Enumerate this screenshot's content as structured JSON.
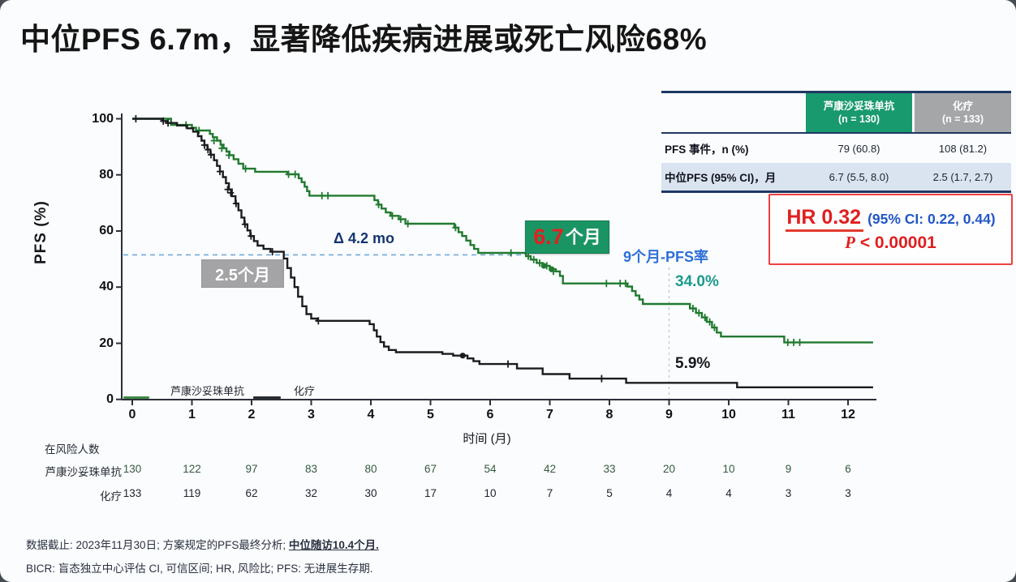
{
  "slide": {
    "title": "中位PFS 6.7m，显著降低疾病进展或死亡风险68%"
  },
  "chart_data": {
    "type": "line",
    "subtype": "kaplan-meier",
    "xlabel": "时间 (月)",
    "ylabel": "PFS (%)",
    "xlim": [
      0,
      12.42
    ],
    "ylim": [
      0,
      100
    ],
    "xticks": [
      0,
      1,
      2,
      3,
      4,
      5,
      6,
      7,
      8,
      9,
      10,
      11,
      12
    ],
    "yticks": [
      0,
      20,
      40,
      60,
      80,
      100
    ],
    "grid": false,
    "legend_position": "lower-left-inside",
    "series": [
      {
        "name": "芦康沙妥珠单抗",
        "color": "#217a2f",
        "median_months": 6.7,
        "pfs_rate_9mo": "34.0%",
        "steps": [
          [
            0,
            100
          ],
          [
            0.65,
            97.8
          ],
          [
            1.0,
            96.8
          ],
          [
            1.07,
            95.8
          ],
          [
            1.3,
            94.6
          ],
          [
            1.35,
            93.4
          ],
          [
            1.42,
            92.2
          ],
          [
            1.48,
            90.8
          ],
          [
            1.53,
            89.5
          ],
          [
            1.58,
            88.3
          ],
          [
            1.63,
            87.0
          ],
          [
            1.7,
            85.6
          ],
          [
            1.78,
            84.0
          ],
          [
            1.86,
            82.2
          ],
          [
            2.06,
            81.1
          ],
          [
            2.6,
            80.2
          ],
          [
            2.79,
            78.8
          ],
          [
            2.84,
            77.4
          ],
          [
            2.89,
            75.8
          ],
          [
            2.93,
            74.2
          ],
          [
            2.97,
            72.6
          ],
          [
            4.06,
            71.0
          ],
          [
            4.12,
            69.4
          ],
          [
            4.18,
            68.0
          ],
          [
            4.25,
            66.6
          ],
          [
            4.33,
            65.4
          ],
          [
            4.47,
            64.2
          ],
          [
            4.58,
            62.6
          ],
          [
            5.4,
            61.2
          ],
          [
            5.47,
            59.6
          ],
          [
            5.53,
            58.2
          ],
          [
            5.6,
            56.6
          ],
          [
            5.67,
            55.0
          ],
          [
            5.73,
            53.6
          ],
          [
            5.8,
            52.2
          ],
          [
            6.6,
            51.0
          ],
          [
            6.68,
            49.8
          ],
          [
            6.78,
            48.6
          ],
          [
            6.88,
            47.6
          ],
          [
            7.0,
            46.4
          ],
          [
            7.1,
            45.6
          ],
          [
            7.17,
            44.0
          ],
          [
            7.22,
            41.3
          ],
          [
            8.3,
            40.2
          ],
          [
            8.38,
            38.6
          ],
          [
            8.44,
            37.0
          ],
          [
            8.5,
            35.6
          ],
          [
            8.56,
            34.0
          ],
          [
            9.35,
            32.4
          ],
          [
            9.45,
            30.8
          ],
          [
            9.55,
            29.2
          ],
          [
            9.63,
            27.6
          ],
          [
            9.72,
            25.6
          ],
          [
            9.8,
            23.8
          ],
          [
            9.87,
            22.4
          ],
          [
            10.93,
            20.3
          ]
        ],
        "censors": [
          [
            0.9,
            97.8
          ],
          [
            1.12,
            95.8
          ],
          [
            1.37,
            92.2
          ],
          [
            1.5,
            89.5
          ],
          [
            1.62,
            87.0
          ],
          [
            1.9,
            82.2
          ],
          [
            2.62,
            80.2
          ],
          [
            2.73,
            80.2
          ],
          [
            3.18,
            72.6
          ],
          [
            3.28,
            72.6
          ],
          [
            4.13,
            69.4
          ],
          [
            4.36,
            65.4
          ],
          [
            4.5,
            64.2
          ],
          [
            4.62,
            62.6
          ],
          [
            5.42,
            61.2
          ],
          [
            6.35,
            52.2
          ],
          [
            6.64,
            51.0
          ],
          [
            6.73,
            49.8
          ],
          [
            6.83,
            48.6
          ],
          [
            6.95,
            47.6
          ],
          [
            7.06,
            45.6
          ],
          [
            7.95,
            41.3
          ],
          [
            8.18,
            41.3
          ],
          [
            8.27,
            41.3
          ],
          [
            9.4,
            32.4
          ],
          [
            9.5,
            30.8
          ],
          [
            9.6,
            29.2
          ],
          [
            9.68,
            27.6
          ],
          [
            9.76,
            25.6
          ],
          [
            10.99,
            20.3
          ],
          [
            11.09,
            20.3
          ],
          [
            11.19,
            20.3
          ]
        ],
        "dots": [
          [
            6.9,
            47.6
          ],
          [
            7.03,
            46.4
          ]
        ]
      },
      {
        "name": "化疗",
        "color": "#1b1c20",
        "median_months": 2.5,
        "pfs_rate_9mo": "5.9%",
        "steps": [
          [
            0,
            100
          ],
          [
            0.5,
            99.2
          ],
          [
            0.58,
            98.5
          ],
          [
            0.75,
            97.6
          ],
          [
            0.92,
            96.6
          ],
          [
            1.02,
            95.4
          ],
          [
            1.1,
            93.8
          ],
          [
            1.16,
            92.2
          ],
          [
            1.21,
            90.6
          ],
          [
            1.26,
            89.0
          ],
          [
            1.31,
            87.2
          ],
          [
            1.37,
            85.2
          ],
          [
            1.42,
            83.2
          ],
          [
            1.47,
            81.2
          ],
          [
            1.52,
            79.2
          ],
          [
            1.57,
            77.0
          ],
          [
            1.62,
            74.8
          ],
          [
            1.67,
            72.4
          ],
          [
            1.73,
            69.8
          ],
          [
            1.78,
            67.4
          ],
          [
            1.83,
            64.8
          ],
          [
            1.88,
            62.4
          ],
          [
            1.93,
            60.2
          ],
          [
            1.98,
            58.2
          ],
          [
            2.04,
            56.4
          ],
          [
            2.1,
            54.8
          ],
          [
            2.2,
            53.6
          ],
          [
            2.32,
            52.6
          ],
          [
            2.54,
            50.2
          ],
          [
            2.6,
            46.8
          ],
          [
            2.66,
            43.4
          ],
          [
            2.72,
            40.0
          ],
          [
            2.78,
            36.6
          ],
          [
            2.85,
            33.2
          ],
          [
            2.92,
            30.4
          ],
          [
            3.0,
            28.8
          ],
          [
            3.1,
            28.0
          ],
          [
            3.98,
            26.8
          ],
          [
            4.05,
            24.6
          ],
          [
            4.1,
            22.4
          ],
          [
            4.16,
            20.4
          ],
          [
            4.22,
            18.8
          ],
          [
            4.3,
            17.6
          ],
          [
            4.42,
            16.8
          ],
          [
            5.2,
            16.2
          ],
          [
            5.38,
            15.6
          ],
          [
            5.62,
            14.6
          ],
          [
            5.72,
            13.6
          ],
          [
            5.82,
            12.6
          ],
          [
            6.45,
            11.0
          ],
          [
            6.88,
            9.0
          ],
          [
            7.33,
            7.4
          ],
          [
            8.28,
            5.9
          ],
          [
            10.14,
            4.3
          ]
        ],
        "censors": [
          [
            0.06,
            100
          ],
          [
            0.52,
            99.2
          ],
          [
            0.6,
            98.5
          ],
          [
            1.21,
            90.6
          ],
          [
            1.27,
            89.0
          ],
          [
            1.32,
            87.2
          ],
          [
            1.47,
            81.2
          ],
          [
            1.6,
            74.8
          ],
          [
            1.65,
            73.6
          ],
          [
            1.74,
            69.8
          ],
          [
            1.89,
            62.4
          ],
          [
            1.99,
            58.2
          ],
          [
            2.35,
            52.6
          ],
          [
            3.12,
            28.0
          ],
          [
            6.3,
            12.6
          ],
          [
            7.87,
            7.4
          ]
        ],
        "dots": [
          [
            5.54,
            15.6
          ]
        ]
      }
    ],
    "reference_lines": {
      "median_y_pct": 51.5,
      "median_line_color": "#74a9d8",
      "month9_x": 9,
      "month9_line_color": "#b9c4d4"
    }
  },
  "annotations": {
    "delta": "Δ 4.2 mo",
    "median_chemo": "2.5个月",
    "median_sac_value": "6.7",
    "median_sac_unit": "个月",
    "pfs9_title": "9个月-PFS率",
    "pfs9_sac": "34.0%",
    "pfs9_chemo": "5.9%"
  },
  "summary_table": {
    "columns": [
      {
        "title": "芦康沙妥珠单抗",
        "n": "(n = 130)",
        "bg": "#18996e"
      },
      {
        "title": "化疗",
        "n": "(n = 133)",
        "bg": "#a5a6a8"
      }
    ],
    "rows": [
      {
        "label": "PFS 事件，n (%)",
        "values": [
          "79 (60.8)",
          "108 (81.2)"
        ]
      },
      {
        "label": "中位PFS (95% CI)，月",
        "values": [
          "6.7 (5.5, 8.0)",
          "2.5 (1.7, 2.7)"
        ]
      }
    ]
  },
  "hr_box": {
    "hr": "HR 0.32",
    "ci": "(95% CI: 0.22, 0.44)",
    "p_label": "P",
    "p_rest": " < 0.00001"
  },
  "risk_table": {
    "header": "在风险人数",
    "rows": [
      {
        "label": "芦康沙妥珠单抗",
        "color": "#33593f",
        "values": [
          130,
          122,
          97,
          83,
          80,
          67,
          54,
          42,
          33,
          20,
          10,
          9,
          6
        ]
      },
      {
        "label": "化疗",
        "color": "#20242e",
        "values": [
          133,
          119,
          62,
          32,
          30,
          17,
          10,
          7,
          5,
          4,
          4,
          3,
          3
        ]
      }
    ]
  },
  "footnotes": {
    "line1_prefix": "数据截止: 2023年11月30日; 方案规定的PFS最终分析; ",
    "line1_bold": "中位随访10.4个月.",
    "line2": "BICR: 盲态独立中心评估 CI, 可信区间; HR, 风险比; PFS: 无进展生存期."
  }
}
